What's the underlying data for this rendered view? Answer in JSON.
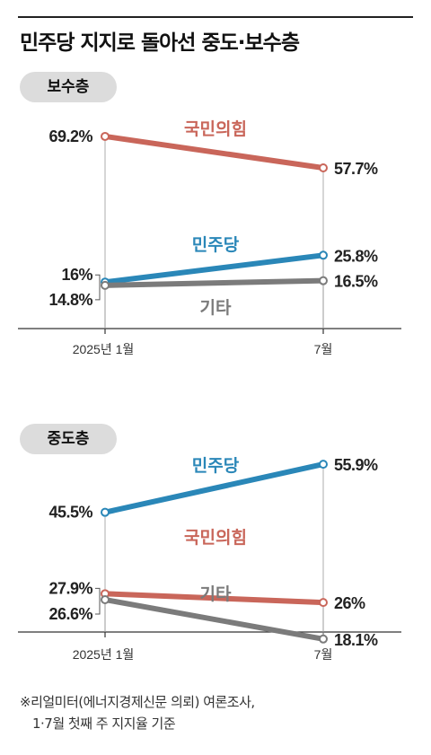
{
  "title": "민주당 지지로 돌아선 중도·보수층",
  "colors": {
    "ppp": "#c9665a",
    "dem": "#2a87b8",
    "other": "#7b7b7b",
    "axis": "#333333"
  },
  "chart_data": [
    {
      "type": "line",
      "title": "보수층",
      "categories": [
        "2025년 1월",
        "7월"
      ],
      "series": [
        {
          "name": "국민의힘",
          "values": [
            69.2,
            57.7
          ],
          "labels": [
            "69.2%",
            "57.7%"
          ],
          "color": "#c9665a"
        },
        {
          "name": "민주당",
          "values": [
            16,
            25.8
          ],
          "labels": [
            "16%",
            "25.8%"
          ],
          "color": "#2a87b8"
        },
        {
          "name": "기타",
          "values": [
            14.8,
            16.5
          ],
          "labels": [
            "14.8%",
            "16.5%"
          ],
          "color": "#7b7b7b"
        }
      ]
    },
    {
      "type": "line",
      "title": "중도층",
      "categories": [
        "2025년 1월",
        "7월"
      ],
      "series": [
        {
          "name": "민주당",
          "values": [
            45.5,
            55.9
          ],
          "labels": [
            "45.5%",
            "55.9%"
          ],
          "color": "#2a87b8"
        },
        {
          "name": "국민의힘",
          "values": [
            27.9,
            26
          ],
          "labels": [
            "27.9%",
            "26%"
          ],
          "color": "#c9665a"
        },
        {
          "name": "기타",
          "values": [
            26.6,
            18.1
          ],
          "labels": [
            "26.6%",
            "18.1%"
          ],
          "color": "#7b7b7b"
        }
      ]
    }
  ],
  "footnote": {
    "line1": "※리얼미터(에너지경제신문 의뢰) 여론조사,",
    "line2": "1·7월 첫째 주 지지율 기준"
  }
}
